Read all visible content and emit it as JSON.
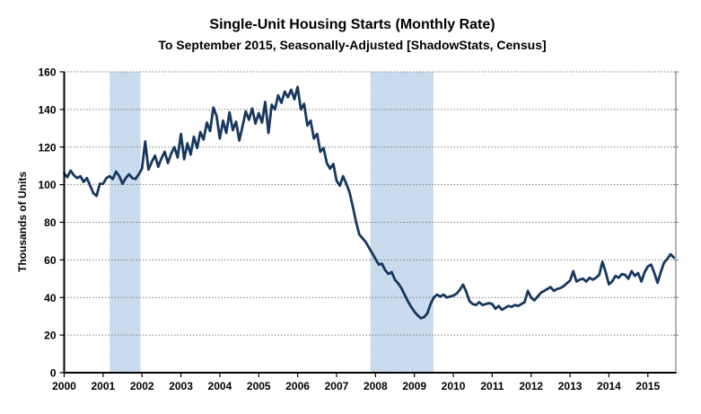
{
  "chart": {
    "title": "Single-Unit Housing Starts (Monthly Rate)",
    "subtitle": "To September 2015, Seasonally-Adjusted [ShadowStats, Census]",
    "y_axis_title": "Thousands of Units"
  },
  "chart_data": {
    "type": "line",
    "title": "Single-Unit Housing Starts (Monthly Rate)",
    "subtitle": "To September 2015, Seasonally-Adjusted [ShadowStats, Census]",
    "xlabel": "",
    "ylabel": "Thousands of Units",
    "ylim": [
      0,
      160
    ],
    "xlim": [
      2000,
      2015.72
    ],
    "yticks": [
      0,
      20,
      40,
      60,
      80,
      100,
      120,
      140,
      160
    ],
    "xticks": [
      2000,
      2001,
      2002,
      2003,
      2004,
      2005,
      2006,
      2007,
      2008,
      2009,
      2010,
      2011,
      2012,
      2013,
      2014,
      2015
    ],
    "grid": "horizontal-dotted",
    "legend": "none",
    "line_color": "#17375E",
    "band_color": "#C3D7ED",
    "grid_color": "#808080",
    "axis_color": "#000000",
    "recession_bands": [
      {
        "start": 2001.17,
        "end": 2001.96
      },
      {
        "start": 2007.87,
        "end": 2009.49
      }
    ],
    "series": [
      {
        "name": "Single-unit housing starts, monthly rate",
        "x_start": 2000.0,
        "x_step": 0.0833333,
        "first_month": "2000-01",
        "last_month": "2015-09",
        "values": [
          106,
          104,
          107.5,
          105,
          103.5,
          104.5,
          101.5,
          103.5,
          99.5,
          95.5,
          94,
          100.5,
          100.5,
          103.5,
          104.5,
          103,
          107,
          104.5,
          100.5,
          103.5,
          105.5,
          103.5,
          103,
          105.5,
          108.5,
          123,
          108,
          112,
          115.5,
          109.5,
          114,
          117.5,
          111.5,
          116.5,
          120,
          114.5,
          127,
          113.5,
          122,
          116,
          125.5,
          119.5,
          128,
          124,
          133,
          128.5,
          141,
          136.5,
          124.5,
          134,
          127.5,
          138.5,
          129,
          133.5,
          123.5,
          131,
          139,
          134.5,
          140.5,
          132.5,
          138,
          133,
          144,
          127.5,
          142.5,
          140,
          147.5,
          143.5,
          149.5,
          146.5,
          150.5,
          145.5,
          152,
          140,
          143,
          131.5,
          134,
          124.5,
          127,
          117.5,
          119.5,
          111.5,
          108.5,
          111,
          102,
          99.5,
          104.5,
          100.5,
          96,
          88.5,
          80.5,
          73.5,
          71.5,
          69.5,
          66.5,
          63.5,
          60.5,
          57.5,
          58,
          54.5,
          52.5,
          53.5,
          49.5,
          47.5,
          45,
          41.5,
          38,
          35,
          32.5,
          30.5,
          29,
          29.5,
          31.5,
          36.5,
          40,
          41.5,
          40.5,
          41.5,
          40,
          40.5,
          41,
          42,
          44,
          46.8,
          43,
          38,
          36.5,
          36,
          37.5,
          36,
          36.5,
          37,
          36.5,
          34,
          35.5,
          33.5,
          34.5,
          35.5,
          35,
          36,
          35.5,
          36.5,
          37.5,
          43.5,
          40,
          38.5,
          40.5,
          42.5,
          43.5,
          44.5,
          45.5,
          43.5,
          44.5,
          45,
          46,
          47.5,
          49,
          54,
          48.5,
          49.5,
          50,
          48.5,
          50.5,
          49.5,
          50.5,
          52,
          59,
          53.5,
          47,
          48.5,
          51.5,
          50.5,
          52.5,
          52,
          50,
          54,
          51.5,
          53,
          48.5,
          53.5,
          56.5,
          57.5,
          53,
          47.8,
          53.5,
          58.5,
          60.5,
          63,
          61.3
        ]
      }
    ]
  }
}
